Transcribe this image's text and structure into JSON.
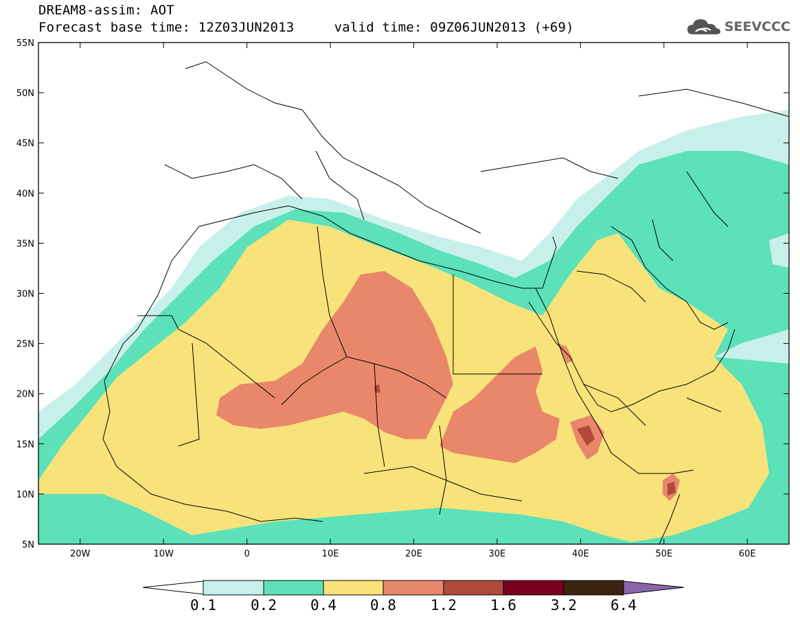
{
  "header": {
    "title": "DREAM8-assim: AOT",
    "subtitle": "Forecast base time: 12Z03JUN2013     valid time: 09Z06JUN2013 (+69)"
  },
  "logo": {
    "text": "SEEVCCC",
    "icon": "cloud-icon"
  },
  "map": {
    "lon_range": [
      -25,
      65
    ],
    "lat_range": [
      5,
      55
    ],
    "lat_ticks": [
      "55N",
      "50N",
      "45N",
      "40N",
      "35N",
      "30N",
      "25N",
      "20N",
      "15N",
      "10N",
      "5N"
    ],
    "lon_ticks": [
      "20W",
      "10W",
      "0",
      "10E",
      "20E",
      "30E",
      "40E",
      "50E",
      "60E"
    ]
  },
  "colorbar": {
    "labels": [
      "0.1",
      "0.2",
      "0.4",
      "0.8",
      "1.2",
      "1.6",
      "3.2",
      "6.4"
    ],
    "colors": [
      "#ffffff",
      "#c8f0ea",
      "#5ce1b9",
      "#f8e37a",
      "#e8876a",
      "#b04a3c",
      "#7a0020",
      "#3b2510",
      "#8a66a8"
    ]
  },
  "palette": {
    "c01": "#c8f0ea",
    "c02": "#5ce1b9",
    "c04": "#f8e37a",
    "c08": "#e8876a",
    "c12": "#b04a3c",
    "c16": "#7a0020"
  }
}
